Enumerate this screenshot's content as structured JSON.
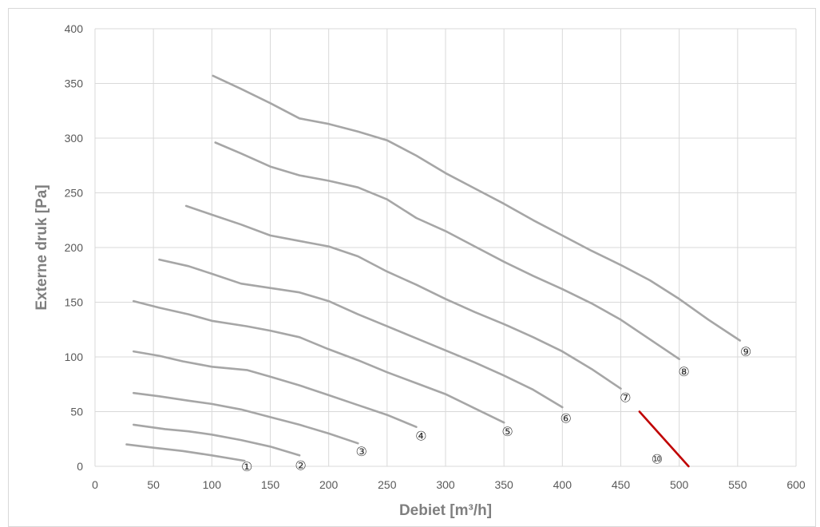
{
  "chart_data": {
    "type": "line",
    "xlabel": "Debiet [m³/h]",
    "ylabel": "Externe druk [Pa]",
    "xlim": [
      0,
      600
    ],
    "ylim": [
      0,
      400
    ],
    "xticks": [
      "0",
      "50",
      "100",
      "150",
      "200",
      "250",
      "300",
      "350",
      "400",
      "450",
      "500",
      "550",
      "600"
    ],
    "yticks": [
      "0",
      "50",
      "100",
      "150",
      "200",
      "250",
      "300",
      "350",
      "400"
    ],
    "grid": true,
    "legend": "none",
    "colors": {
      "curve": "#a6a6a6",
      "highlight": "#c00000",
      "grid": "#d9d9d9"
    },
    "series": [
      {
        "label": "①",
        "color": "#a6a6a6",
        "label_at": [
          130,
          0
        ],
        "points": [
          [
            27,
            20
          ],
          [
            50,
            17
          ],
          [
            75,
            14
          ],
          [
            100,
            10
          ],
          [
            128,
            5
          ]
        ]
      },
      {
        "label": "②",
        "color": "#a6a6a6",
        "label_at": [
          176,
          1
        ],
        "points": [
          [
            33,
            38
          ],
          [
            60,
            34
          ],
          [
            80,
            32
          ],
          [
            100,
            29
          ],
          [
            125,
            24
          ],
          [
            150,
            18
          ],
          [
            175,
            10
          ]
        ]
      },
      {
        "label": "③",
        "color": "#a6a6a6",
        "label_at": [
          228,
          14
        ],
        "points": [
          [
            33,
            67
          ],
          [
            55,
            64
          ],
          [
            80,
            60
          ],
          [
            100,
            57
          ],
          [
            125,
            52
          ],
          [
            150,
            45
          ],
          [
            175,
            38
          ],
          [
            200,
            30
          ],
          [
            225,
            21
          ]
        ]
      },
      {
        "label": "④",
        "color": "#a6a6a6",
        "label_at": [
          279,
          28
        ],
        "points": [
          [
            33,
            105
          ],
          [
            55,
            101
          ],
          [
            75,
            96
          ],
          [
            100,
            91
          ],
          [
            130,
            88
          ],
          [
            150,
            82
          ],
          [
            175,
            74
          ],
          [
            200,
            65
          ],
          [
            225,
            56
          ],
          [
            250,
            47
          ],
          [
            275,
            36
          ]
        ]
      },
      {
        "label": "⑤",
        "color": "#a6a6a6",
        "label_at": [
          353,
          32
        ],
        "points": [
          [
            33,
            151
          ],
          [
            55,
            145
          ],
          [
            80,
            139
          ],
          [
            100,
            133
          ],
          [
            130,
            128
          ],
          [
            150,
            124
          ],
          [
            175,
            118
          ],
          [
            200,
            107
          ],
          [
            225,
            97
          ],
          [
            250,
            86
          ],
          [
            275,
            76
          ],
          [
            300,
            66
          ],
          [
            325,
            53
          ],
          [
            350,
            40
          ]
        ]
      },
      {
        "label": "⑥",
        "color": "#a6a6a6",
        "label_at": [
          403,
          44
        ],
        "points": [
          [
            55,
            189
          ],
          [
            80,
            183
          ],
          [
            100,
            176
          ],
          [
            125,
            167
          ],
          [
            150,
            163
          ],
          [
            175,
            159
          ],
          [
            200,
            151
          ],
          [
            225,
            139
          ],
          [
            250,
            128
          ],
          [
            275,
            117
          ],
          [
            300,
            106
          ],
          [
            325,
            95
          ],
          [
            350,
            83
          ],
          [
            375,
            70
          ],
          [
            400,
            54
          ]
        ]
      },
      {
        "label": "⑦",
        "color": "#a6a6a6",
        "label_at": [
          454,
          63
        ],
        "points": [
          [
            78,
            238
          ],
          [
            100,
            230
          ],
          [
            125,
            221
          ],
          [
            150,
            211
          ],
          [
            175,
            206
          ],
          [
            200,
            201
          ],
          [
            225,
            192
          ],
          [
            250,
            178
          ],
          [
            275,
            166
          ],
          [
            300,
            153
          ],
          [
            325,
            141
          ],
          [
            350,
            130
          ],
          [
            375,
            118
          ],
          [
            400,
            105
          ],
          [
            425,
            89
          ],
          [
            450,
            71
          ]
        ]
      },
      {
        "label": "⑧",
        "color": "#a6a6a6",
        "label_at": [
          504,
          87
        ],
        "points": [
          [
            103,
            296
          ],
          [
            125,
            286
          ],
          [
            150,
            274
          ],
          [
            175,
            266
          ],
          [
            200,
            261
          ],
          [
            225,
            255
          ],
          [
            250,
            244
          ],
          [
            275,
            227
          ],
          [
            300,
            215
          ],
          [
            325,
            201
          ],
          [
            350,
            187
          ],
          [
            375,
            174
          ],
          [
            400,
            162
          ],
          [
            425,
            149
          ],
          [
            450,
            134
          ],
          [
            475,
            116
          ],
          [
            500,
            98
          ]
        ]
      },
      {
        "label": "⑨",
        "color": "#a6a6a6",
        "label_at": [
          557,
          105
        ],
        "points": [
          [
            101,
            357
          ],
          [
            125,
            345
          ],
          [
            150,
            332
          ],
          [
            175,
            318
          ],
          [
            200,
            313
          ],
          [
            225,
            306
          ],
          [
            250,
            298
          ],
          [
            275,
            284
          ],
          [
            300,
            268
          ],
          [
            325,
            254
          ],
          [
            350,
            240
          ],
          [
            375,
            225
          ],
          [
            400,
            211
          ],
          [
            425,
            197
          ],
          [
            450,
            184
          ],
          [
            475,
            170
          ],
          [
            500,
            153
          ],
          [
            525,
            134
          ],
          [
            552,
            115
          ]
        ]
      },
      {
        "label": "⑩",
        "color": "#c00000",
        "label_at": [
          481,
          7
        ],
        "points": [
          [
            466,
            50
          ],
          [
            508,
            0
          ]
        ]
      }
    ]
  }
}
